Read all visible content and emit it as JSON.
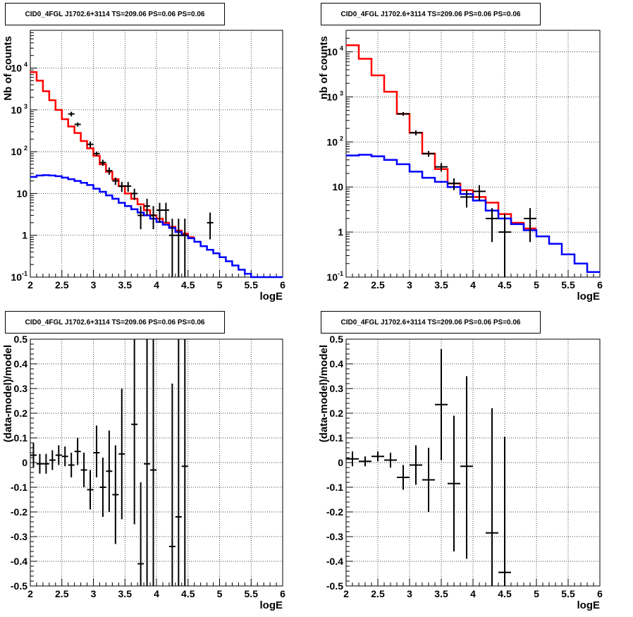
{
  "panels_title": "CID0_4FGL J1702.6+3114 TS=209.06 PS=0.06 PS=0.06",
  "colors": {
    "data": "#000000",
    "total_model": "#ff0000",
    "source_model": "#0000ff",
    "grid": "#000000"
  },
  "chart_data": [
    {
      "type": "line",
      "title": "CID0_4FGL J1702.6+3114 TS=209.06 PS=0.06 PS=0.06",
      "xlabel": "logE",
      "ylabel": "Nb of counts",
      "xlim": [
        2,
        6
      ],
      "ylim": [
        0.1,
        80000
      ],
      "log_y": true,
      "grid": true,
      "x_ticks": [
        "2",
        "2.5",
        "3",
        "3.5",
        "4",
        "4.5",
        "5",
        "5.5",
        "6"
      ],
      "y_ticks": [
        "10^-1",
        "1",
        "10",
        "10^2",
        "10^3",
        "10^4"
      ],
      "series": [
        {
          "style": "step",
          "color": "red",
          "bin_width": 0.1,
          "x": [
            2.0,
            2.1,
            2.2,
            2.3,
            2.4,
            2.5,
            2.6,
            2.7,
            2.8,
            2.9,
            3.0,
            3.1,
            3.2,
            3.3,
            3.4,
            3.5,
            3.6,
            3.7,
            3.8,
            3.9,
            4.0,
            4.1,
            4.2,
            4.3,
            4.4,
            4.5
          ],
          "y": [
            8000,
            5000,
            2800,
            1700,
            1000,
            600,
            400,
            280,
            180,
            120,
            80,
            50,
            33,
            22,
            15,
            10,
            7.5,
            5.5,
            4,
            3,
            2.5,
            2,
            1.6,
            1.3,
            1.1,
            0.9
          ]
        },
        {
          "style": "step",
          "color": "blue",
          "bin_width": 0.1,
          "x": [
            2.0,
            2.1,
            2.2,
            2.3,
            2.4,
            2.5,
            2.6,
            2.7,
            2.8,
            2.9,
            3.0,
            3.1,
            3.2,
            3.3,
            3.4,
            3.5,
            3.6,
            3.7,
            3.8,
            3.9,
            4.0,
            4.1,
            4.2,
            4.3,
            4.4,
            4.5,
            4.6,
            4.7,
            4.8,
            4.9,
            5.0,
            5.1,
            5.2,
            5.3,
            5.4,
            5.5,
            5.6,
            5.7,
            5.8,
            5.9
          ],
          "y": [
            25,
            27,
            27.5,
            27,
            26,
            24,
            22,
            20,
            18,
            16,
            13,
            11,
            9,
            7.5,
            6,
            5,
            4.2,
            3.5,
            3,
            2.5,
            2.1,
            1.8,
            1.5,
            1.2,
            1.0,
            0.85,
            0.7,
            0.55,
            0.45,
            0.37,
            0.3,
            0.24,
            0.19,
            0.15,
            0.12,
            0.1,
            0.1,
            0.1,
            0.1,
            0.1
          ]
        },
        {
          "style": "errorbar",
          "color": "black",
          "x_err": 0.05,
          "points": [
            [
              2.65,
              800,
              700,
              900
            ],
            [
              2.75,
              450,
              400,
              500
            ],
            [
              2.95,
              150,
              125,
              175
            ],
            [
              3.05,
              90,
              80,
              100
            ],
            [
              3.15,
              55,
              46,
              64
            ],
            [
              3.25,
              35,
              28,
              42
            ],
            [
              3.35,
              20,
              16,
              24
            ],
            [
              3.45,
              15,
              11,
              19
            ],
            [
              3.55,
              15,
              11,
              19
            ],
            [
              3.65,
              10,
              7,
              13
            ],
            [
              3.75,
              3,
              1.4,
              5
            ],
            [
              3.85,
              5,
              3,
              7.5
            ],
            [
              3.95,
              3,
              1.4,
              5
            ],
            [
              4.05,
              4,
              2,
              6
            ],
            [
              4.15,
              4,
              2,
              6
            ],
            [
              4.25,
              1,
              0.1,
              2.5
            ],
            [
              4.35,
              1,
              0.1,
              2.5
            ],
            [
              4.45,
              1,
              0.1,
              2.5
            ],
            [
              4.85,
              2,
              0.8,
              3.5
            ]
          ]
        }
      ]
    },
    {
      "type": "line",
      "title": "CID0_4FGL J1702.6+3114 TS=209.06 PS=0.06 PS=0.06",
      "xlabel": "logE",
      "ylabel": "nb of counts",
      "xlim": [
        2,
        6
      ],
      "ylim": [
        0.1,
        30000
      ],
      "log_y": true,
      "grid": true,
      "x_ticks": [
        "2",
        "2.5",
        "3",
        "3.5",
        "4",
        "4.5",
        "5",
        "5.5",
        "6"
      ],
      "y_ticks": [
        "10^-1",
        "1",
        "10",
        "10^2",
        "10^3",
        "10^4"
      ],
      "series": [
        {
          "style": "step",
          "color": "red",
          "bin_width": 0.2,
          "x": [
            2.0,
            2.2,
            2.4,
            2.6,
            2.8,
            3.0,
            3.2,
            3.4,
            3.6,
            3.8,
            4.0,
            4.2,
            4.4,
            4.6,
            4.8
          ],
          "y": [
            14000,
            7000,
            3000,
            1300,
            420,
            160,
            55,
            25,
            12,
            8.5,
            6,
            4.5,
            2.5,
            1.6,
            1.2
          ]
        },
        {
          "style": "step",
          "color": "blue",
          "bin_width": 0.2,
          "x": [
            2.0,
            2.2,
            2.4,
            2.6,
            2.8,
            3.0,
            3.2,
            3.4,
            3.6,
            3.8,
            4.0,
            4.2,
            4.4,
            4.6,
            4.8,
            5.0,
            5.2,
            5.4,
            5.6,
            5.8
          ],
          "y": [
            50,
            52,
            48,
            40,
            32,
            22,
            16,
            13,
            10,
            7,
            5,
            3,
            2,
            1.5,
            1.1,
            0.8,
            0.55,
            0.32,
            0.2,
            0.13
          ]
        },
        {
          "style": "errorbar",
          "color": "black",
          "x_err": 0.1,
          "points": [
            [
              2.9,
              420,
              380,
              460
            ],
            [
              3.1,
              160,
              140,
              180
            ],
            [
              3.3,
              55,
              47,
              63
            ],
            [
              3.5,
              28,
              22,
              34
            ],
            [
              3.7,
              12,
              8.5,
              15.5
            ],
            [
              3.9,
              6,
              3.5,
              8.5
            ],
            [
              4.1,
              8,
              5,
              11
            ],
            [
              4.3,
              2,
              0.6,
              3.4
            ],
            [
              4.5,
              1,
              0.1,
              2.5
            ],
            [
              4.9,
              2,
              0.6,
              3.4
            ]
          ]
        }
      ]
    },
    {
      "type": "scatter",
      "title": "CID0_4FGL J1702.6+3114 TS=209.06 PS=0.06 PS=0.06",
      "xlabel": "logE",
      "ylabel": "(data-model)/model",
      "xlim": [
        2,
        6
      ],
      "ylim": [
        -0.5,
        0.5
      ],
      "grid": true,
      "x_ticks": [
        "2",
        "2.5",
        "3",
        "3.5",
        "4",
        "4.5",
        "5",
        "5.5",
        "6"
      ],
      "y_ticks": [
        "-0.5",
        "-0.4",
        "-0.3",
        "-0.2",
        "-0.1",
        "0",
        "0.1",
        "0.2",
        "0.3",
        "0.4",
        "0.5"
      ],
      "x_err": 0.05,
      "points": [
        [
          2.05,
          0.03,
          -0.02,
          0.08
        ],
        [
          2.15,
          -0.005,
          -0.045,
          0.035
        ],
        [
          2.25,
          -0.005,
          -0.045,
          0.035
        ],
        [
          2.35,
          0.01,
          -0.03,
          0.05
        ],
        [
          2.45,
          0.03,
          -0.01,
          0.07
        ],
        [
          2.55,
          0.025,
          -0.015,
          0.065
        ],
        [
          2.65,
          -0.01,
          -0.06,
          0.04
        ],
        [
          2.75,
          0.045,
          -0.01,
          0.1
        ],
        [
          2.85,
          -0.03,
          -0.1,
          0.04
        ],
        [
          2.95,
          -0.11,
          -0.19,
          -0.03
        ],
        [
          3.05,
          0.04,
          -0.06,
          0.15
        ],
        [
          3.15,
          -0.1,
          -0.22,
          0.02
        ],
        [
          3.25,
          -0.035,
          -0.2,
          0.13
        ],
        [
          3.35,
          -0.13,
          -0.33,
          0.07
        ],
        [
          3.45,
          0.035,
          -0.23,
          0.3
        ],
        [
          3.65,
          0.155,
          -0.25,
          0.5
        ],
        [
          3.75,
          -0.41,
          -0.5,
          -0.08
        ],
        [
          3.85,
          -0.005,
          -0.5,
          0.5
        ],
        [
          3.95,
          -0.03,
          -0.5,
          0.5
        ],
        [
          4.25,
          -0.34,
          -0.5,
          0.32
        ],
        [
          4.35,
          -0.22,
          -0.5,
          0.5
        ],
        [
          4.45,
          -0.015,
          -0.5,
          0.5
        ]
      ]
    },
    {
      "type": "scatter",
      "title": "CID0_4FGL J1702.6+3114 TS=209.06 PS=0.06 PS=0.06",
      "xlabel": "logE",
      "ylabel": "(data-model)/model",
      "xlim": [
        2,
        6
      ],
      "ylim": [
        -0.5,
        0.5
      ],
      "grid": true,
      "x_ticks": [
        "2",
        "2.5",
        "3",
        "3.5",
        "4",
        "4.5",
        "5",
        "5.5",
        "6"
      ],
      "y_ticks": [
        "-0.5",
        "-0.4",
        "-0.3",
        "-0.2",
        "-0.1",
        "0",
        "0.1",
        "0.2",
        "0.3",
        "0.4",
        "0.5"
      ],
      "x_err": 0.1,
      "points": [
        [
          2.1,
          0.015,
          -0.015,
          0.045
        ],
        [
          2.3,
          0.005,
          -0.015,
          0.025
        ],
        [
          2.5,
          0.025,
          0.005,
          0.045
        ],
        [
          2.7,
          0.01,
          -0.02,
          0.04
        ],
        [
          2.9,
          -0.06,
          -0.11,
          -0.01
        ],
        [
          3.1,
          -0.01,
          -0.09,
          0.07
        ],
        [
          3.3,
          -0.07,
          -0.2,
          0.06
        ],
        [
          3.5,
          0.235,
          0.01,
          0.46
        ],
        [
          3.7,
          -0.085,
          -0.36,
          0.19
        ],
        [
          3.9,
          -0.015,
          -0.39,
          0.35
        ],
        [
          4.3,
          -0.285,
          -0.5,
          0.22
        ],
        [
          4.5,
          -0.445,
          -0.5,
          0.105
        ]
      ]
    }
  ]
}
